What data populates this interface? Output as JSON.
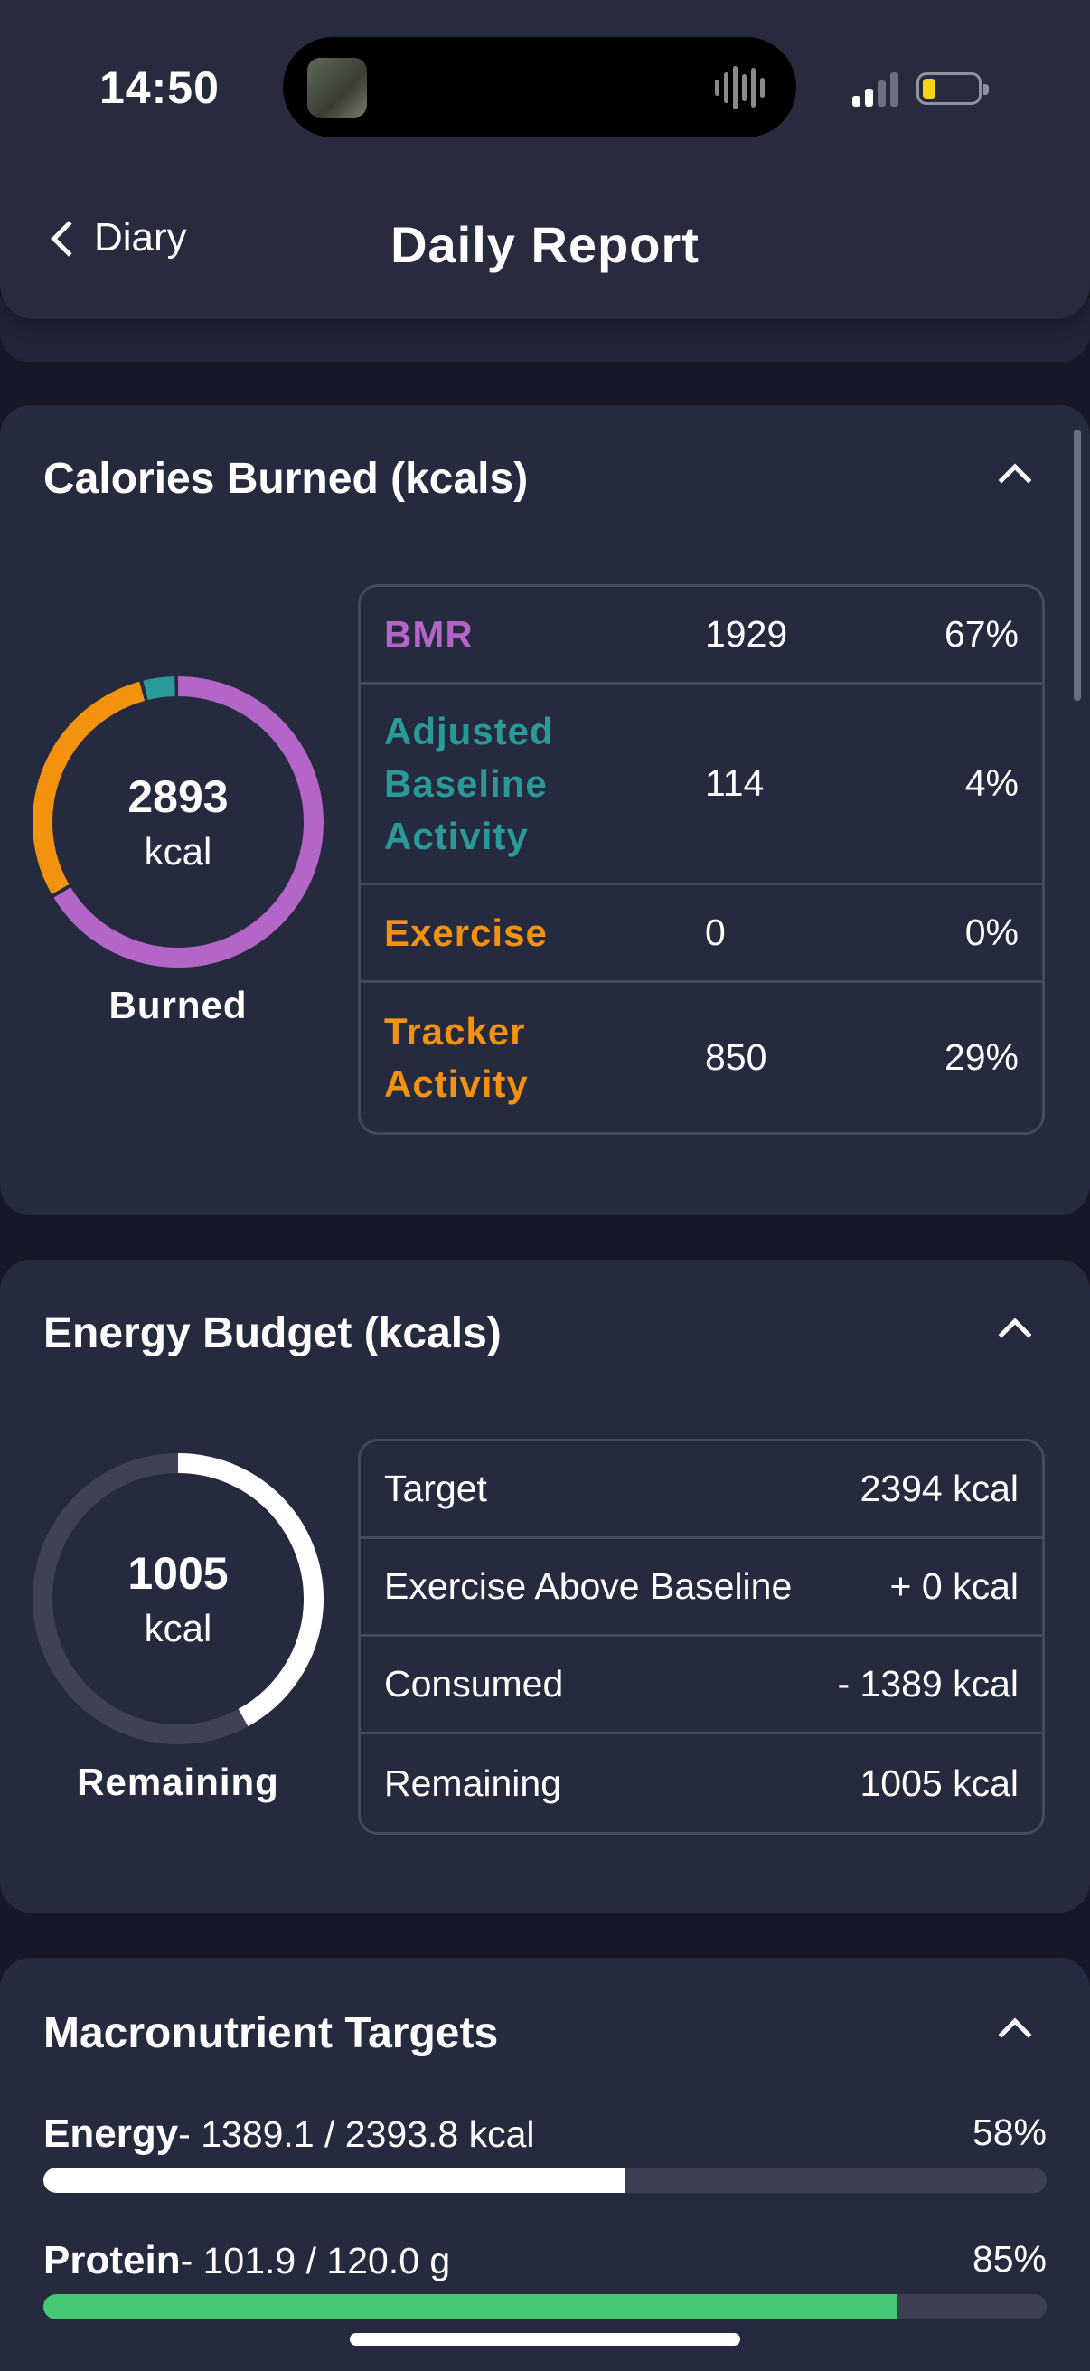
{
  "status": {
    "time": "14:50",
    "battery_color": "#f5d316"
  },
  "nav": {
    "back_label": "Diary",
    "title": "Daily Report"
  },
  "calories_burned": {
    "title": "Calories Burned (kcals)",
    "total_value": "2893",
    "total_unit": "kcal",
    "caption": "Burned",
    "rows": [
      {
        "label": "BMR",
        "value": "1929",
        "percent": "67%",
        "color": "#b466c8",
        "share": 0.667
      },
      {
        "label": "Adjusted Baseline Activity",
        "value": "114",
        "percent": "4%",
        "color": "#2a9a98",
        "share": 0.039
      },
      {
        "label": "Exercise",
        "value": "0",
        "percent": "0%",
        "color": "#f3920f",
        "share": 0.0
      },
      {
        "label": "Tracker Activity",
        "value": "850",
        "percent": "29%",
        "color": "#f3920f",
        "share": 0.294
      }
    ]
  },
  "energy_budget": {
    "title": "Energy Budget (kcals)",
    "remaining_value": "1005",
    "remaining_unit": "kcal",
    "caption": "Remaining",
    "remaining_fraction": 0.42,
    "rows": [
      {
        "label": "Target",
        "value": "2394 kcal"
      },
      {
        "label": "Exercise Above Baseline",
        "value": "+ 0 kcal"
      },
      {
        "label": "Consumed",
        "value": "- 1389 kcal"
      },
      {
        "label": "Remaining",
        "value": "1005 kcal"
      }
    ]
  },
  "macros": {
    "title": "Macronutrient Targets",
    "items": [
      {
        "name": "Energy",
        "detail": "- 1389.1 / 2393.8 kcal",
        "percent": "58%",
        "fraction": 0.58,
        "color": "#ffffff"
      },
      {
        "name": "Protein",
        "detail": "- 101.9 / 120.0 g",
        "percent": "85%",
        "fraction": 0.85,
        "color": "#45c873"
      }
    ]
  }
}
